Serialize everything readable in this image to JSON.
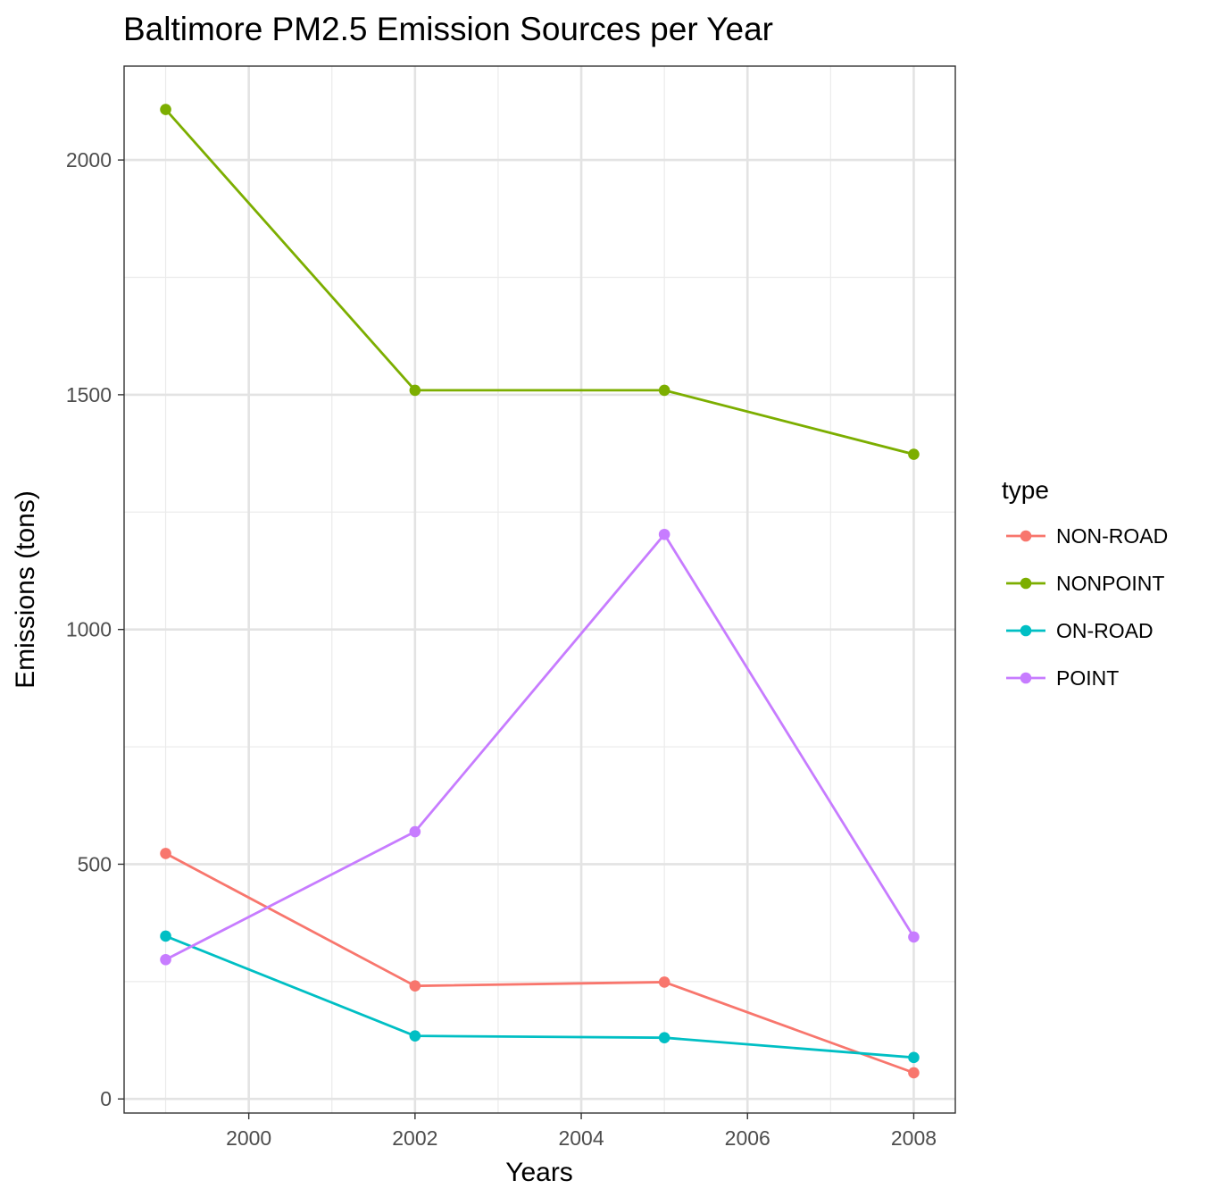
{
  "chart_data": {
    "type": "line",
    "title": "Baltimore PM2.5 Emission Sources per Year",
    "xlabel": "Years",
    "ylabel": "Emissions (tons)",
    "xlim": [
      1998.5,
      2008.5
    ],
    "ylim": [
      -30,
      2200
    ],
    "x_ticks": [
      2000,
      2002,
      2004,
      2006,
      2008
    ],
    "y_ticks": [
      0,
      500,
      1000,
      1500,
      2000
    ],
    "x_minor": [
      1999,
      2001,
      2003,
      2005,
      2007
    ],
    "y_minor": [
      250,
      750,
      1250,
      1750
    ],
    "grid": true,
    "legend": {
      "title": "type",
      "position": "right"
    },
    "x": [
      1999,
      2002,
      2005,
      2008
    ],
    "series": [
      {
        "name": "NON-ROAD",
        "color": "#F8766D",
        "values": [
          522.9,
          240.8,
          248.9,
          55.8
        ]
      },
      {
        "name": "NONPOINT",
        "color": "#7CAE00",
        "values": [
          2107.6,
          1509.5,
          1509.5,
          1373.2
        ]
      },
      {
        "name": "ON-ROAD",
        "color": "#00BFC4",
        "values": [
          346.8,
          134.3,
          130.4,
          88.3
        ]
      },
      {
        "name": "POINT",
        "color": "#C77CFF",
        "values": [
          296.8,
          569.3,
          1202.5,
          344.98
        ]
      }
    ]
  }
}
